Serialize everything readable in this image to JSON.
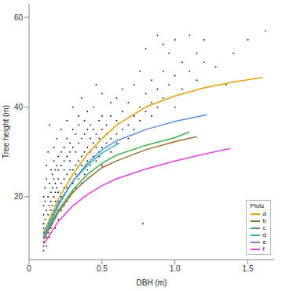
{
  "chart_data": {
    "type": "scatter",
    "x_label": "DBH (m)",
    "y_label": "Tree height (m)",
    "xlim": [
      0,
      1.68
    ],
    "ylim": [
      6,
      63
    ],
    "xticks": [
      0,
      0.5,
      {
        "value": 1,
        "label": "1.0"
      },
      1.5
    ],
    "yticks": [
      20,
      40,
      60
    ],
    "grid": false,
    "legend": "lower right",
    "legend_title": "Plots",
    "points": {
      "color": "#000000",
      "marker": "dot",
      "values": [
        [
          0.1,
          8
        ],
        [
          0.1,
          10
        ],
        [
          0.1,
          12
        ],
        [
          0.1,
          14
        ],
        [
          0.1,
          16
        ],
        [
          0.1,
          18
        ],
        [
          0.1,
          11
        ],
        [
          0.1,
          13
        ],
        [
          0.1,
          20
        ],
        [
          0.1,
          9
        ],
        [
          0.11,
          10
        ],
        [
          0.11,
          15
        ],
        [
          0.11,
          19
        ],
        [
          0.11,
          22
        ],
        [
          0.11,
          12
        ],
        [
          0.12,
          9
        ],
        [
          0.12,
          13
        ],
        [
          0.12,
          17
        ],
        [
          0.12,
          24
        ],
        [
          0.12,
          11
        ],
        [
          0.12,
          27
        ],
        [
          0.13,
          12
        ],
        [
          0.13,
          16
        ],
        [
          0.13,
          20
        ],
        [
          0.13,
          14
        ],
        [
          0.13,
          30
        ],
        [
          0.14,
          11
        ],
        [
          0.14,
          18
        ],
        [
          0.14,
          23
        ],
        [
          0.14,
          15
        ],
        [
          0.14,
          36
        ],
        [
          0.15,
          13
        ],
        [
          0.15,
          17
        ],
        [
          0.15,
          21
        ],
        [
          0.15,
          26
        ],
        [
          0.15,
          12
        ],
        [
          0.15,
          19
        ],
        [
          0.16,
          14
        ],
        [
          0.16,
          22
        ],
        [
          0.16,
          18
        ],
        [
          0.16,
          25
        ],
        [
          0.16,
          16
        ],
        [
          0.17,
          15
        ],
        [
          0.17,
          20
        ],
        [
          0.17,
          24
        ],
        [
          0.17,
          28
        ],
        [
          0.17,
          17
        ],
        [
          0.17,
          31
        ],
        [
          0.18,
          13
        ],
        [
          0.18,
          19
        ],
        [
          0.18,
          23
        ],
        [
          0.18,
          26
        ],
        [
          0.18,
          21
        ],
        [
          0.19,
          16
        ],
        [
          0.19,
          22
        ],
        [
          0.19,
          27
        ],
        [
          0.19,
          18
        ],
        [
          0.19,
          33
        ],
        [
          0.2,
          15
        ],
        [
          0.2,
          19
        ],
        [
          0.2,
          24
        ],
        [
          0.2,
          29
        ],
        [
          0.2,
          21
        ],
        [
          0.2,
          17
        ],
        [
          0.2,
          26
        ],
        [
          0.22,
          17
        ],
        [
          0.22,
          23
        ],
        [
          0.22,
          27
        ],
        [
          0.22,
          30
        ],
        [
          0.22,
          20
        ],
        [
          0.22,
          35
        ],
        [
          0.24,
          18
        ],
        [
          0.24,
          22
        ],
        [
          0.24,
          26
        ],
        [
          0.24,
          31
        ],
        [
          0.24,
          24
        ],
        [
          0.24,
          28
        ],
        [
          0.26,
          19
        ],
        [
          0.26,
          25
        ],
        [
          0.26,
          29
        ],
        [
          0.26,
          33
        ],
        [
          0.26,
          22
        ],
        [
          0.26,
          37
        ],
        [
          0.28,
          20
        ],
        [
          0.28,
          24
        ],
        [
          0.28,
          28
        ],
        [
          0.28,
          32
        ],
        [
          0.28,
          26
        ],
        [
          0.28,
          30
        ],
        [
          0.3,
          21
        ],
        [
          0.3,
          26
        ],
        [
          0.3,
          31
        ],
        [
          0.3,
          35
        ],
        [
          0.3,
          23
        ],
        [
          0.3,
          40
        ],
        [
          0.32,
          22
        ],
        [
          0.32,
          27
        ],
        [
          0.32,
          30
        ],
        [
          0.32,
          34
        ],
        [
          0.32,
          25
        ],
        [
          0.34,
          24
        ],
        [
          0.34,
          28
        ],
        [
          0.34,
          32
        ],
        [
          0.34,
          36
        ],
        [
          0.34,
          38
        ],
        [
          0.36,
          23
        ],
        [
          0.36,
          29
        ],
        [
          0.36,
          33
        ],
        [
          0.36,
          27
        ],
        [
          0.36,
          42
        ],
        [
          0.38,
          25
        ],
        [
          0.38,
          30
        ],
        [
          0.38,
          34
        ],
        [
          0.38,
          37
        ],
        [
          0.4,
          26
        ],
        [
          0.4,
          31
        ],
        [
          0.4,
          28
        ],
        [
          0.4,
          35
        ],
        [
          0.4,
          39
        ],
        [
          0.42,
          27
        ],
        [
          0.42,
          33
        ],
        [
          0.42,
          30
        ],
        [
          0.42,
          36
        ],
        [
          0.44,
          29
        ],
        [
          0.44,
          32
        ],
        [
          0.44,
          35
        ],
        [
          0.44,
          40
        ],
        [
          0.46,
          28
        ],
        [
          0.46,
          34
        ],
        [
          0.46,
          31
        ],
        [
          0.46,
          45
        ],
        [
          0.48,
          30
        ],
        [
          0.48,
          33
        ],
        [
          0.48,
          37
        ],
        [
          0.48,
          29
        ],
        [
          0.5,
          31
        ],
        [
          0.5,
          35
        ],
        [
          0.5,
          38
        ],
        [
          0.5,
          27
        ],
        [
          0.5,
          43
        ],
        [
          0.53,
          32
        ],
        [
          0.53,
          36
        ],
        [
          0.53,
          34
        ],
        [
          0.56,
          33
        ],
        [
          0.56,
          38
        ],
        [
          0.56,
          30
        ],
        [
          0.56,
          41
        ],
        [
          0.6,
          34
        ],
        [
          0.6,
          37
        ],
        [
          0.6,
          42
        ],
        [
          0.6,
          32
        ],
        [
          0.64,
          35
        ],
        [
          0.64,
          39
        ],
        [
          0.64,
          44
        ],
        [
          0.68,
          36
        ],
        [
          0.68,
          33
        ],
        [
          0.68,
          41
        ],
        [
          0.72,
          38
        ],
        [
          0.72,
          45
        ],
        [
          0.72,
          35
        ],
        [
          0.76,
          40
        ],
        [
          0.76,
          37
        ],
        [
          0.76,
          48
        ],
        [
          0.78,
          14
        ],
        [
          0.8,
          39
        ],
        [
          0.8,
          43
        ],
        [
          0.8,
          53
        ],
        [
          0.84,
          41
        ],
        [
          0.84,
          46
        ],
        [
          0.84,
          38
        ],
        [
          0.88,
          44
        ],
        [
          0.88,
          56
        ],
        [
          0.88,
          40
        ],
        [
          0.92,
          42
        ],
        [
          0.92,
          48
        ],
        [
          0.92,
          54
        ],
        [
          0.96,
          45
        ],
        [
          0.96,
          52
        ],
        [
          1.0,
          47
        ],
        [
          1.0,
          40
        ],
        [
          1.0,
          55
        ],
        [
          1.05,
          50
        ],
        [
          1.05,
          44
        ],
        [
          1.1,
          56
        ],
        [
          1.1,
          48
        ],
        [
          1.15,
          46
        ],
        [
          1.15,
          52
        ],
        [
          1.2,
          55
        ],
        [
          1.2,
          50
        ],
        [
          1.28,
          49
        ],
        [
          1.35,
          45
        ],
        [
          1.4,
          52
        ],
        [
          1.5,
          55
        ],
        [
          1.62,
          57
        ]
      ]
    },
    "series": [
      {
        "name": "a",
        "color": "#e69f00",
        "x": [
          0.1,
          0.2,
          0.3,
          0.4,
          0.5,
          0.6,
          0.8,
          1.0,
          1.2,
          1.4,
          1.6
        ],
        "values": [
          12,
          19.5,
          25,
          29.5,
          33,
          36,
          40,
          42.5,
          44.3,
          45.6,
          46.6
        ]
      },
      {
        "name": "b",
        "color": "#9c6a2e",
        "x": [
          0.1,
          0.2,
          0.3,
          0.4,
          0.5,
          0.6,
          0.8,
          1.0,
          1.15
        ],
        "values": [
          10.5,
          16.5,
          21,
          24,
          26.5,
          28,
          30.5,
          32.3,
          33.4
        ]
      },
      {
        "name": "c",
        "color": "#3fae49",
        "x": [
          0.1,
          0.2,
          0.3,
          0.4,
          0.5,
          0.6,
          0.8,
          1.0,
          1.1
        ],
        "values": [
          11,
          17,
          21.5,
          25,
          27.5,
          29.3,
          31.5,
          33.2,
          34.5
        ]
      },
      {
        "name": "d",
        "color": "#2bb3a6",
        "x": [
          0.1,
          0.2,
          0.3,
          0.4,
          0.5,
          0.62
        ],
        "values": [
          11.5,
          18.5,
          23.5,
          27,
          29.8,
          32
        ]
      },
      {
        "name": "e",
        "color": "#5b8fd9",
        "x": [
          0.1,
          0.2,
          0.3,
          0.4,
          0.5,
          0.6,
          0.8,
          1.0,
          1.22
        ],
        "values": [
          11,
          18,
          23.5,
          27.5,
          30.5,
          32.5,
          35,
          36.8,
          38.3
        ]
      },
      {
        "name": "f",
        "color": "#e040e0",
        "x": [
          0.1,
          0.2,
          0.3,
          0.4,
          0.5,
          0.6,
          0.8,
          1.0,
          1.2,
          1.38
        ],
        "values": [
          9.5,
          14.5,
          18,
          20.5,
          22.5,
          24,
          26.2,
          28,
          29.5,
          30.8
        ]
      }
    ]
  }
}
